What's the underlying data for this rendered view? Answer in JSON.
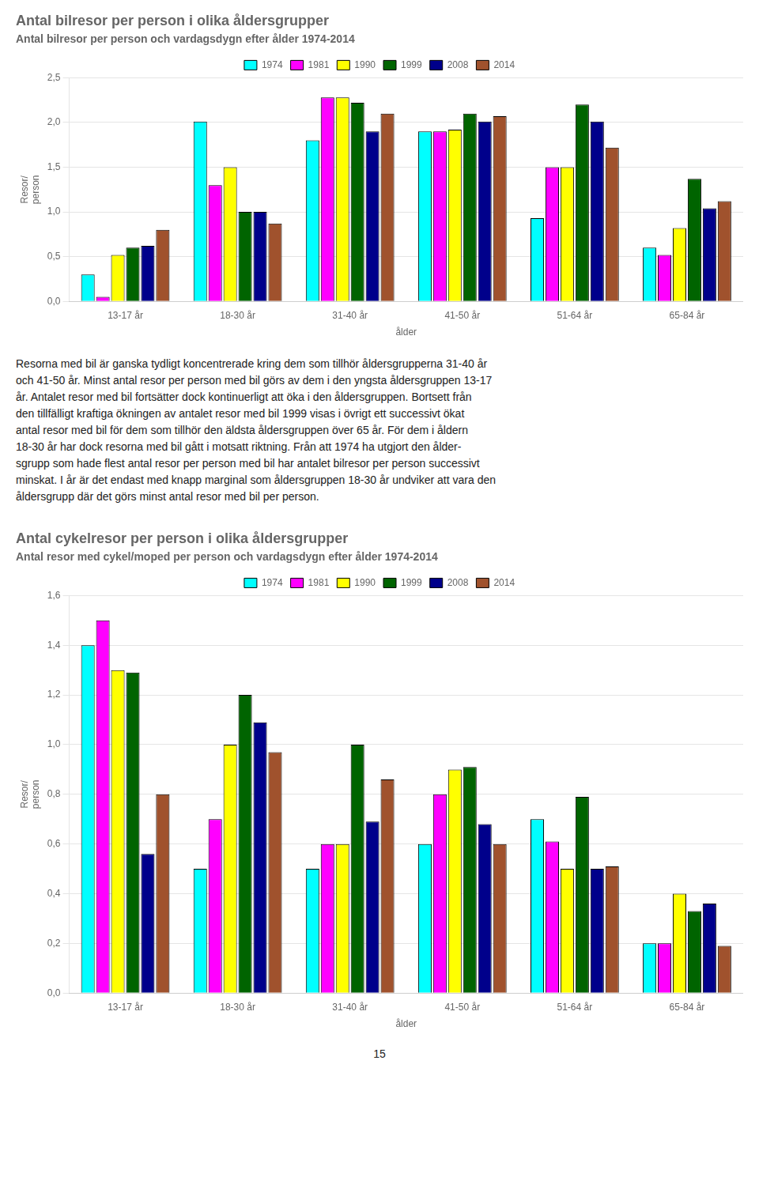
{
  "chart_data": [
    {
      "type": "bar",
      "title": "Antal bilresor per person i olika åldersgrupper",
      "subtitle": "Antal bilresor per person och vardagsdygn efter ålder 1974-2014",
      "xlabel": "ålder",
      "ylabel": "Resor/\nperson",
      "categories": [
        "13-17 år",
        "18-30 år",
        "31-40 år",
        "41-50 år",
        "51-64 år",
        "65-84 år"
      ],
      "series": [
        {
          "name": "1974",
          "color": "#00FFFF",
          "values": [
            0.3,
            2.01,
            1.8,
            1.9,
            0.93,
            0.6
          ]
        },
        {
          "name": "1981",
          "color": "#FF00FF",
          "values": [
            0.05,
            1.3,
            2.28,
            1.9,
            1.5,
            0.52
          ]
        },
        {
          "name": "1990",
          "color": "#FFFF00",
          "values": [
            0.52,
            1.5,
            2.28,
            1.92,
            1.5,
            0.82
          ]
        },
        {
          "name": "1999",
          "color": "#006400",
          "values": [
            0.6,
            1.0,
            2.22,
            2.1,
            2.2,
            1.37
          ]
        },
        {
          "name": "2008",
          "color": "#00008B",
          "values": [
            0.62,
            1.0,
            1.9,
            2.01,
            2.01,
            1.04
          ]
        },
        {
          "name": "2014",
          "color": "#A0522D",
          "values": [
            0.8,
            0.87,
            2.1,
            2.07,
            1.72,
            1.12
          ]
        }
      ],
      "ylim": [
        0.0,
        2.5
      ],
      "yticks": [
        {
          "value": 0.0,
          "label": "0,0"
        },
        {
          "value": 0.5,
          "label": "0,5"
        },
        {
          "value": 1.0,
          "label": "1,0"
        },
        {
          "value": 1.5,
          "label": "1,5"
        },
        {
          "value": 2.0,
          "label": "2,0"
        },
        {
          "value": 2.5,
          "label": "2,5"
        }
      ],
      "grid": "y",
      "legend": "top"
    },
    {
      "type": "bar",
      "title": "Antal cykelresor per person i olika åldersgrupper",
      "subtitle": "Antal resor med cykel/moped per person och vardagsdygn efter ålder 1974-2014",
      "xlabel": "ålder",
      "ylabel": "Resor/\nperson",
      "categories": [
        "13-17 år",
        "18-30 år",
        "31-40 år",
        "41-50 år",
        "51-64 år",
        "65-84 år"
      ],
      "series": [
        {
          "name": "1974",
          "color": "#00FFFF",
          "values": [
            1.4,
            0.5,
            0.5,
            0.6,
            0.7,
            0.2
          ]
        },
        {
          "name": "1981",
          "color": "#FF00FF",
          "values": [
            1.5,
            0.7,
            0.6,
            0.8,
            0.61,
            0.2
          ]
        },
        {
          "name": "1990",
          "color": "#FFFF00",
          "values": [
            1.3,
            1.0,
            0.6,
            0.9,
            0.5,
            0.4
          ]
        },
        {
          "name": "1999",
          "color": "#006400",
          "values": [
            1.29,
            1.2,
            1.0,
            0.91,
            0.79,
            0.33
          ]
        },
        {
          "name": "2008",
          "color": "#00008B",
          "values": [
            0.56,
            1.09,
            0.69,
            0.68,
            0.5,
            0.36
          ]
        },
        {
          "name": "2014",
          "color": "#A0522D",
          "values": [
            0.8,
            0.97,
            0.86,
            0.6,
            0.51,
            0.19
          ]
        }
      ],
      "ylim": [
        0.0,
        1.6
      ],
      "yticks": [
        {
          "value": 0.0,
          "label": "0,0"
        },
        {
          "value": 0.2,
          "label": "0,2"
        },
        {
          "value": 0.4,
          "label": "0,4"
        },
        {
          "value": 0.6,
          "label": "0,6"
        },
        {
          "value": 0.8,
          "label": "0,8"
        },
        {
          "value": 1.0,
          "label": "1,0"
        },
        {
          "value": 1.2,
          "label": "1,2"
        },
        {
          "value": 1.4,
          "label": "1,4"
        },
        {
          "value": 1.6,
          "label": "1,6"
        }
      ],
      "grid": "y",
      "legend": "top"
    }
  ],
  "paragraph": [
    "Resorna med bil är ganska tydligt koncentrerade kring dem som tillhör åldersgrupperna 31-40 år",
    "och 41-50 år. Minst antal resor per person med bil görs av dem i den yngsta åldersgruppen 13-17",
    "år. Antalet resor med bil fortsätter dock kontinuerligt att öka i den åldersgruppen. Bortsett från",
    "den tillfälligt kraftiga ökningen av antalet resor med bil 1999 visas i övrigt ett successivt ökat",
    "antal resor med bil för dem som tillhör den äldsta åldersgruppen över 65 år. För dem i åldern",
    "18-30 år har dock resorna med bil gått i motsatt riktning. Från att 1974 ha utgjort den ålder-",
    "sgrupp som hade flest antal resor per person med bil har antalet bilresor per person successivt",
    "minskat. I år är det endast med knapp marginal som åldersgruppen 18-30 år undviker att vara den",
    "åldersgrupp där det görs minst antal resor med bil per person."
  ],
  "page_number": "15"
}
